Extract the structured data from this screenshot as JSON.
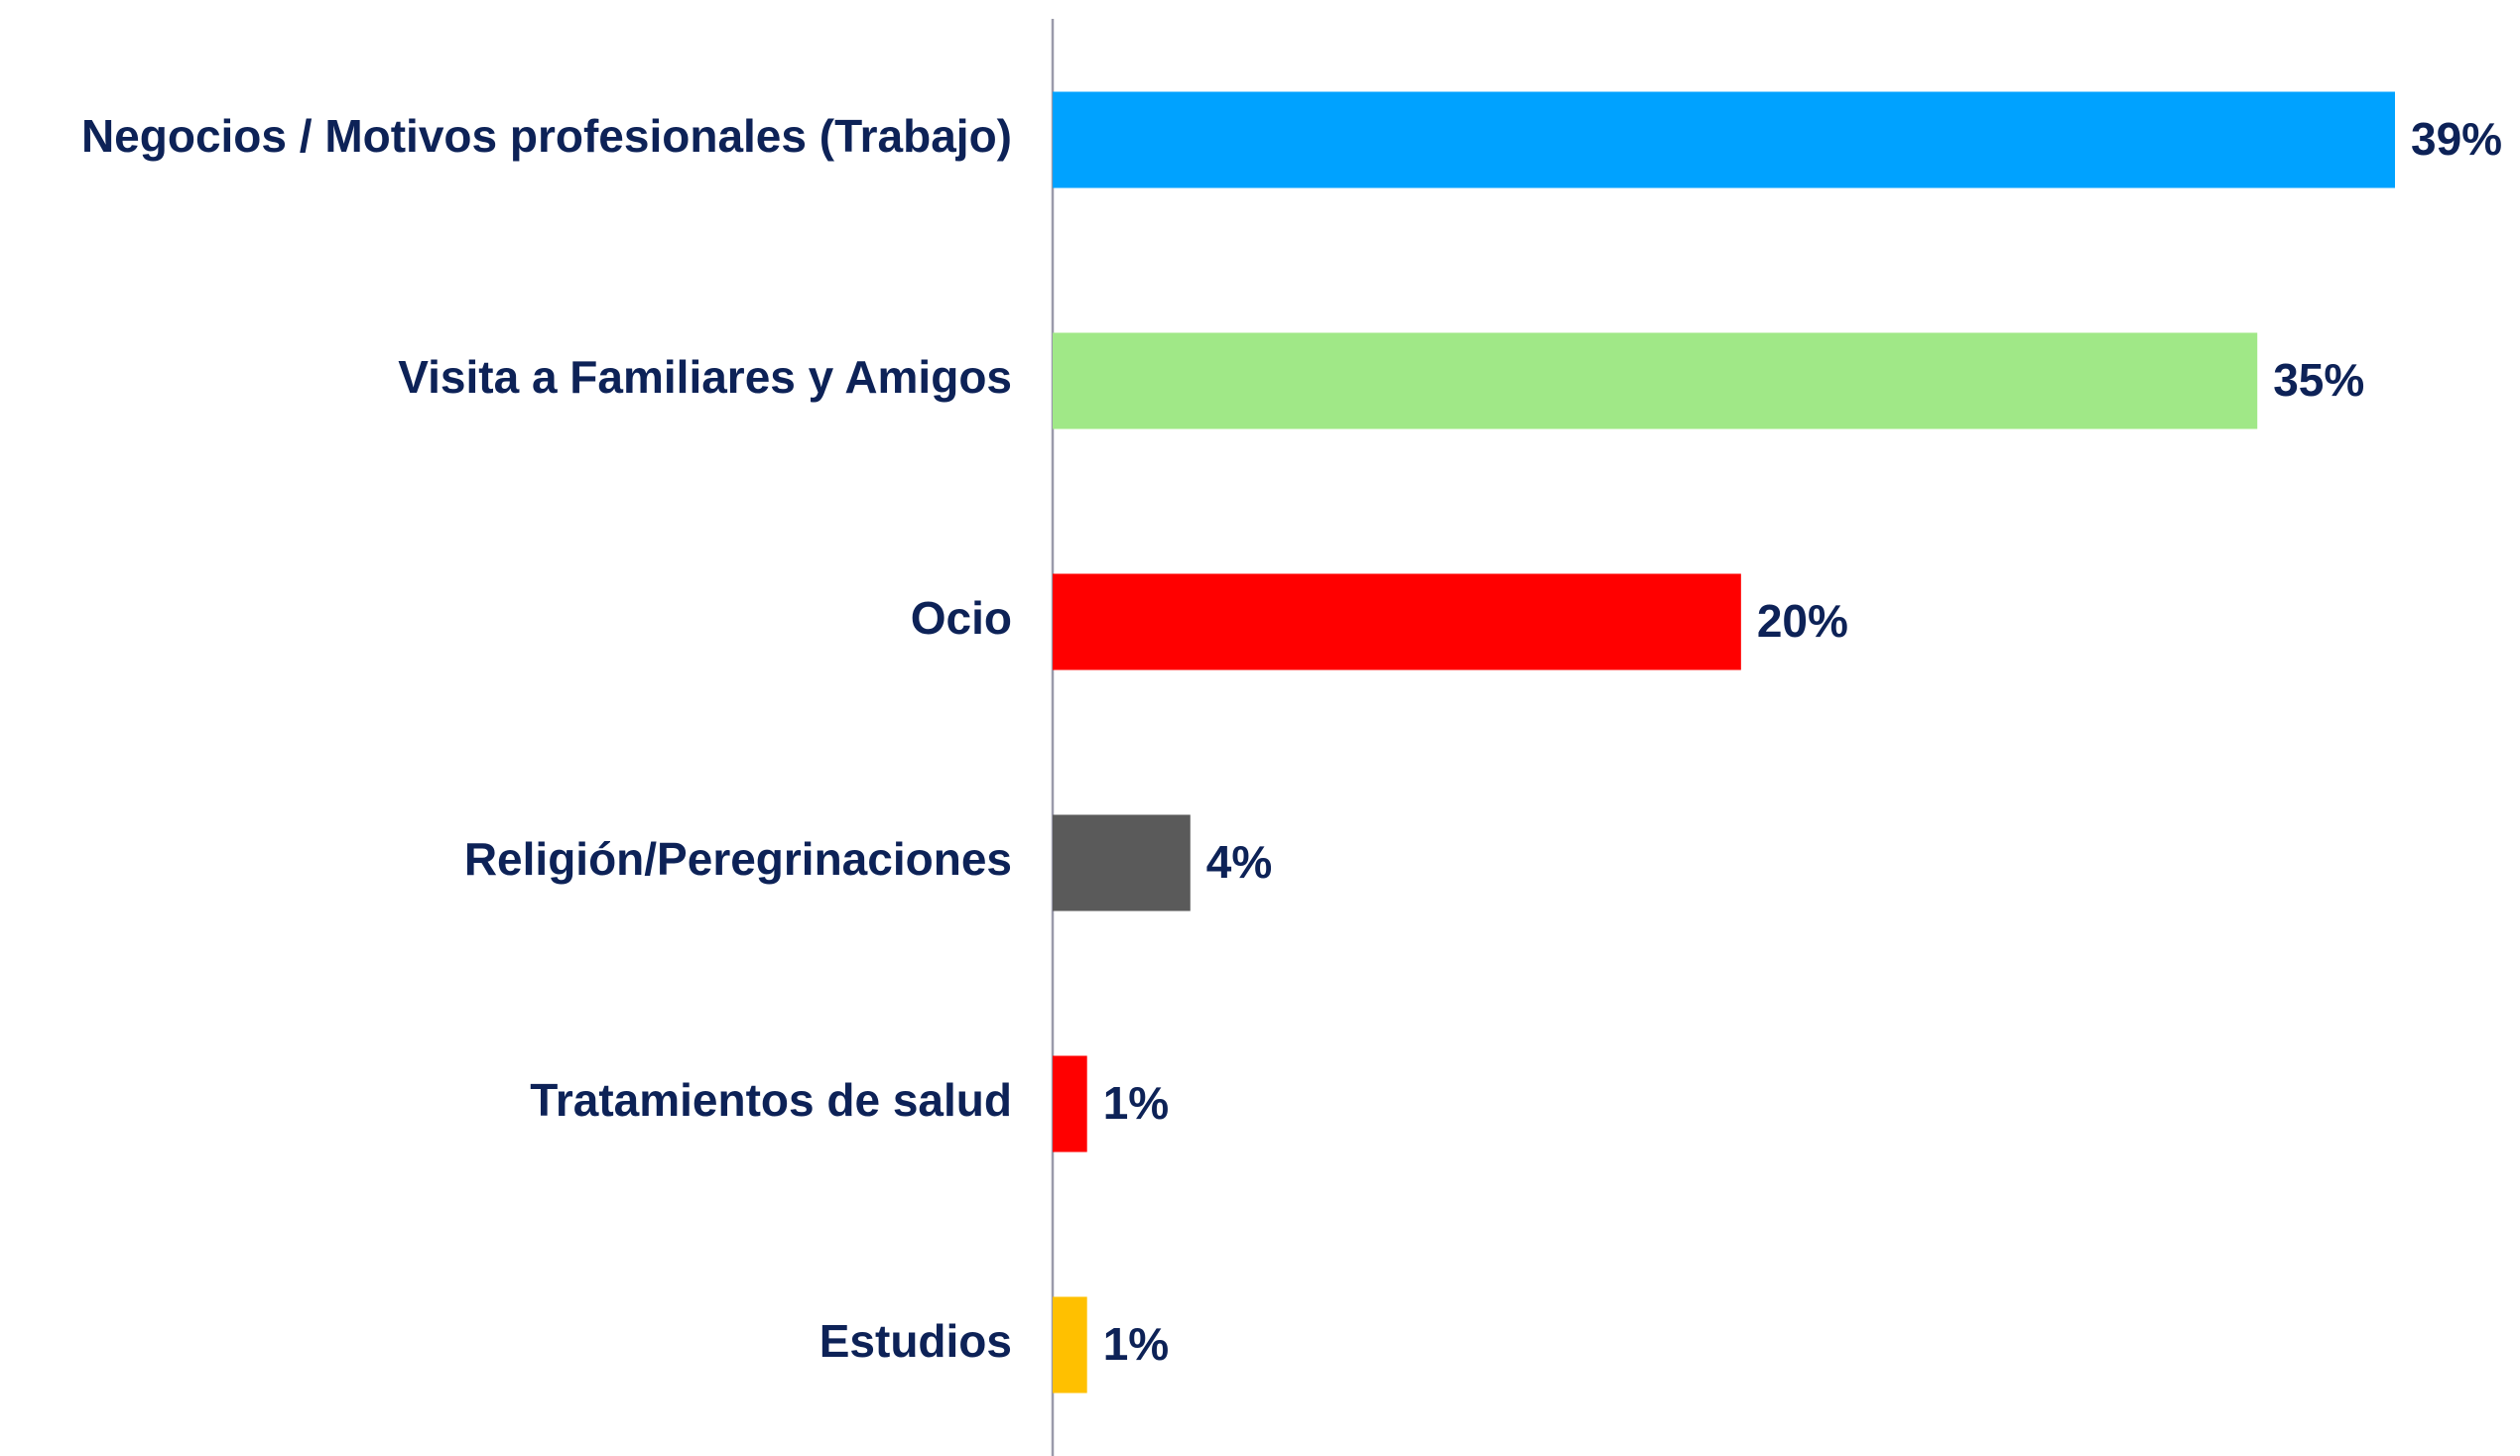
{
  "chart_data": {
    "type": "bar",
    "categories": [
      "Negocios / Motivos profesionales (Trabajo)",
      "Visita a Familiares y Amigos",
      "Ocio",
      "Religión/Peregrinaciones",
      "Tratamientos de salud",
      "Estudios"
    ],
    "values": [
      39,
      35,
      20,
      4,
      1,
      1
    ],
    "value_labels": [
      "39%",
      "35%",
      "20%",
      "4%",
      "1%",
      "1%"
    ],
    "colors": [
      "#00a2ff",
      "#a0e887",
      "#ff0000",
      "#5a5a5a",
      "#ff0000",
      "#ffc000"
    ]
  }
}
